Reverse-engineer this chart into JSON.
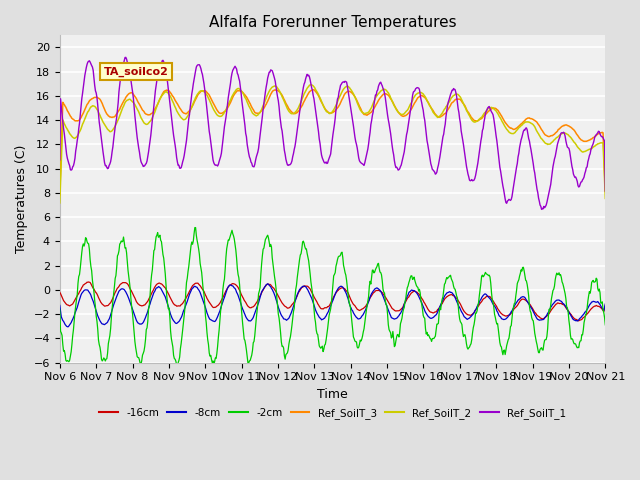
{
  "title": "Alfalfa Forerunner Temperatures",
  "xlabel": "Time",
  "ylabel": "Temperatures (C)",
  "annotation": "TA_soilco2",
  "ylim": [
    -6,
    21
  ],
  "yticks": [
    -6,
    -4,
    -2,
    0,
    2,
    4,
    6,
    8,
    10,
    12,
    14,
    16,
    18,
    20
  ],
  "series": {
    "neg16cm": {
      "color": "#cc0000",
      "label": "-16cm"
    },
    "neg8cm": {
      "color": "#0000cc",
      "label": "-8cm"
    },
    "neg2cm": {
      "color": "#00cc00",
      "label": "-2cm"
    },
    "ref3": {
      "color": "#ff8800",
      "label": "Ref_SoilT_3"
    },
    "ref2": {
      "color": "#cccc00",
      "label": "Ref_SoilT_2"
    },
    "ref1": {
      "color": "#9900cc",
      "label": "Ref_SoilT_1"
    }
  },
  "xtick_labels": [
    "Nov 6",
    "Nov 7",
    "Nov 8",
    "Nov 9",
    "Nov 10",
    "Nov 11",
    "Nov 12",
    "Nov 13",
    "Nov 14",
    "Nov 15",
    "Nov 16",
    "Nov 17",
    "Nov 18",
    "Nov 19",
    "Nov 20",
    "Nov 21"
  ]
}
